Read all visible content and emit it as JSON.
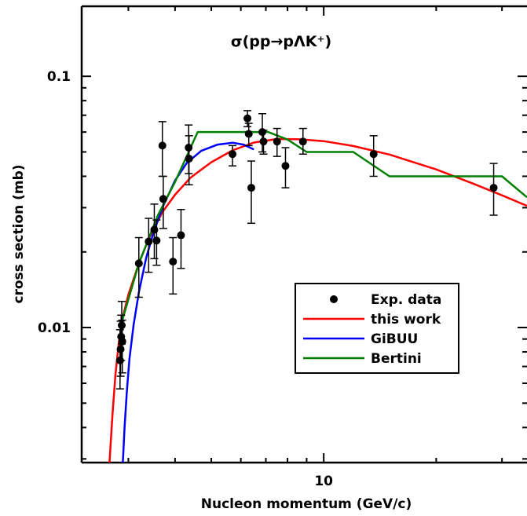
{
  "chart_data": {
    "type": "line",
    "title": "σ(pp→pΛK⁺)",
    "xlabel": "Nucleon momentum (GeV/c)",
    "ylabel": "cross section (mb)",
    "x_scale": "log",
    "y_scale": "log",
    "xlim": [
      2.25,
      35
    ],
    "ylim": [
      0.0029,
      0.19
    ],
    "x_tick_labels": [
      {
        "value": 10,
        "label": "10"
      }
    ],
    "y_tick_labels": [
      {
        "value": 0.1,
        "label": "0.1"
      },
      {
        "value": 0.01,
        "label": "0.01"
      }
    ],
    "grid": false,
    "legend_position": "lower-right",
    "series": [
      {
        "name": "Exp. data",
        "kind": "points",
        "color": "#000000",
        "points": [
          {
            "x": 2.85,
            "y": 0.0074,
            "lo": 0.0057,
            "hi": 0.0098
          },
          {
            "x": 2.86,
            "y": 0.0082,
            "lo": 0.0064,
            "hi": 0.0106
          },
          {
            "x": 2.87,
            "y": 0.0092,
            "lo": 0.0074,
            "hi": 0.0112
          },
          {
            "x": 2.88,
            "y": 0.0102,
            "lo": 0.0086,
            "hi": 0.0127
          },
          {
            "x": 2.89,
            "y": 0.0088,
            "lo": 0.0066,
            "hi": 0.0107
          },
          {
            "x": 3.2,
            "y": 0.018,
            "lo": 0.0132,
            "hi": 0.0228
          },
          {
            "x": 3.4,
            "y": 0.022,
            "lo": 0.0166,
            "hi": 0.0272
          },
          {
            "x": 3.52,
            "y": 0.0245,
            "lo": 0.0188,
            "hi": 0.031
          },
          {
            "x": 3.57,
            "y": 0.0222,
            "lo": 0.0177,
            "hi": 0.0268
          },
          {
            "x": 3.7,
            "y": 0.053,
            "lo": 0.04,
            "hi": 0.066
          },
          {
            "x": 3.72,
            "y": 0.0325,
            "lo": 0.0248,
            "hi": 0.04
          },
          {
            "x": 3.95,
            "y": 0.0183,
            "lo": 0.0136,
            "hi": 0.0228
          },
          {
            "x": 4.15,
            "y": 0.0233,
            "lo": 0.0172,
            "hi": 0.0295
          },
          {
            "x": 4.35,
            "y": 0.052,
            "lo": 0.041,
            "hi": 0.064
          },
          {
            "x": 4.36,
            "y": 0.047,
            "lo": 0.037,
            "hi": 0.058
          },
          {
            "x": 5.7,
            "y": 0.049,
            "lo": 0.044,
            "hi": 0.053
          },
          {
            "x": 6.25,
            "y": 0.068,
            "lo": 0.063,
            "hi": 0.073
          },
          {
            "x": 6.3,
            "y": 0.059,
            "lo": 0.053,
            "hi": 0.065
          },
          {
            "x": 6.4,
            "y": 0.036,
            "lo": 0.026,
            "hi": 0.046
          },
          {
            "x": 6.85,
            "y": 0.06,
            "lo": 0.05,
            "hi": 0.071
          },
          {
            "x": 6.9,
            "y": 0.055,
            "lo": 0.049,
            "hi": 0.061
          },
          {
            "x": 7.5,
            "y": 0.055,
            "lo": 0.048,
            "hi": 0.062
          },
          {
            "x": 7.9,
            "y": 0.044,
            "lo": 0.036,
            "hi": 0.052
          },
          {
            "x": 8.8,
            "y": 0.055,
            "lo": 0.049,
            "hi": 0.062
          },
          {
            "x": 13.6,
            "y": 0.049,
            "lo": 0.04,
            "hi": 0.058
          },
          {
            "x": 28.5,
            "y": 0.036,
            "lo": 0.028,
            "hi": 0.045
          }
        ]
      },
      {
        "name": "this work",
        "kind": "line",
        "color": "#ff0000",
        "x": [
          2.67,
          2.72,
          2.77,
          2.83,
          2.9,
          3.0,
          3.2,
          3.4,
          3.7,
          4.0,
          4.4,
          5.0,
          5.7,
          6.5,
          7.5,
          8.5,
          10,
          12,
          15,
          20,
          25,
          30,
          35
        ],
        "values": [
          0.0029,
          0.0045,
          0.0065,
          0.0088,
          0.011,
          0.0135,
          0.018,
          0.0225,
          0.0288,
          0.0338,
          0.0395,
          0.0455,
          0.0507,
          0.0545,
          0.0563,
          0.0562,
          0.0552,
          0.0528,
          0.0488,
          0.0426,
          0.0375,
          0.0336,
          0.0305
        ]
      },
      {
        "name": "GiBUU",
        "kind": "line",
        "color": "#0000ff",
        "x": [
          2.9,
          2.93,
          2.97,
          3.02,
          3.1,
          3.2,
          3.35,
          3.5,
          3.7,
          4.0,
          4.3,
          4.7,
          5.2,
          5.7,
          6.1,
          6.5
        ],
        "values": [
          0.0029,
          0.004,
          0.0055,
          0.0075,
          0.0103,
          0.0138,
          0.019,
          0.0238,
          0.03,
          0.0385,
          0.0452,
          0.0505,
          0.0535,
          0.0544,
          0.0535,
          0.0512
        ]
      },
      {
        "name": "Bertini",
        "kind": "line",
        "color": "#008000",
        "x": [
          2.88,
          3.2,
          3.6,
          4.0,
          4.6,
          5.9,
          6.5,
          7.1,
          8.0,
          9.0,
          12.0,
          15.0,
          19.0,
          25.0,
          30.0,
          35.0
        ],
        "values": [
          0.0105,
          0.018,
          0.028,
          0.038,
          0.06,
          0.06,
          0.06,
          0.06,
          0.056,
          0.05,
          0.05,
          0.04,
          0.04,
          0.04,
          0.04,
          0.033
        ]
      }
    ]
  }
}
